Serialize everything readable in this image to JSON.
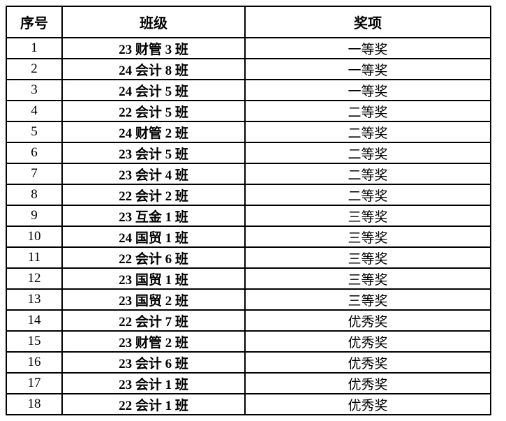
{
  "colors": {
    "background": "#ffffff",
    "border": "#000000",
    "text": "#000000"
  },
  "table": {
    "columns": [
      {
        "key": "index",
        "label": "序号"
      },
      {
        "key": "class_name",
        "label": "班级"
      },
      {
        "key": "award",
        "label": "奖项"
      }
    ],
    "rows": [
      {
        "index": "1",
        "class_name": "23 财管 3 班",
        "award": "一等奖"
      },
      {
        "index": "2",
        "class_name": "24 会计 8 班",
        "award": "一等奖"
      },
      {
        "index": "3",
        "class_name": "24 会计 5 班",
        "award": "一等奖"
      },
      {
        "index": "4",
        "class_name": "22 会计 5 班",
        "award": "二等奖"
      },
      {
        "index": "5",
        "class_name": "24 财管 2 班",
        "award": "二等奖"
      },
      {
        "index": "6",
        "class_name": "23 会计 5 班",
        "award": "二等奖"
      },
      {
        "index": "7",
        "class_name": "23 会计 4 班",
        "award": "二等奖"
      },
      {
        "index": "8",
        "class_name": "22 会计 2 班",
        "award": "二等奖"
      },
      {
        "index": "9",
        "class_name": "23 互金 1 班",
        "award": "三等奖"
      },
      {
        "index": "10",
        "class_name": "24 国贸 1 班",
        "award": "三等奖"
      },
      {
        "index": "11",
        "class_name": "22 会计 6 班",
        "award": "三等奖"
      },
      {
        "index": "12",
        "class_name": "23 国贸 1 班",
        "award": "三等奖"
      },
      {
        "index": "13",
        "class_name": "23 国贸 2 班",
        "award": "三等奖"
      },
      {
        "index": "14",
        "class_name": "22 会计 7 班",
        "award": "优秀奖"
      },
      {
        "index": "15",
        "class_name": "23 财管 2 班",
        "award": "优秀奖"
      },
      {
        "index": "16",
        "class_name": "23 会计 6 班",
        "award": "优秀奖"
      },
      {
        "index": "17",
        "class_name": "23 会计 1 班",
        "award": "优秀奖"
      },
      {
        "index": "18",
        "class_name": "22 会计 1 班",
        "award": "优秀奖"
      }
    ]
  }
}
